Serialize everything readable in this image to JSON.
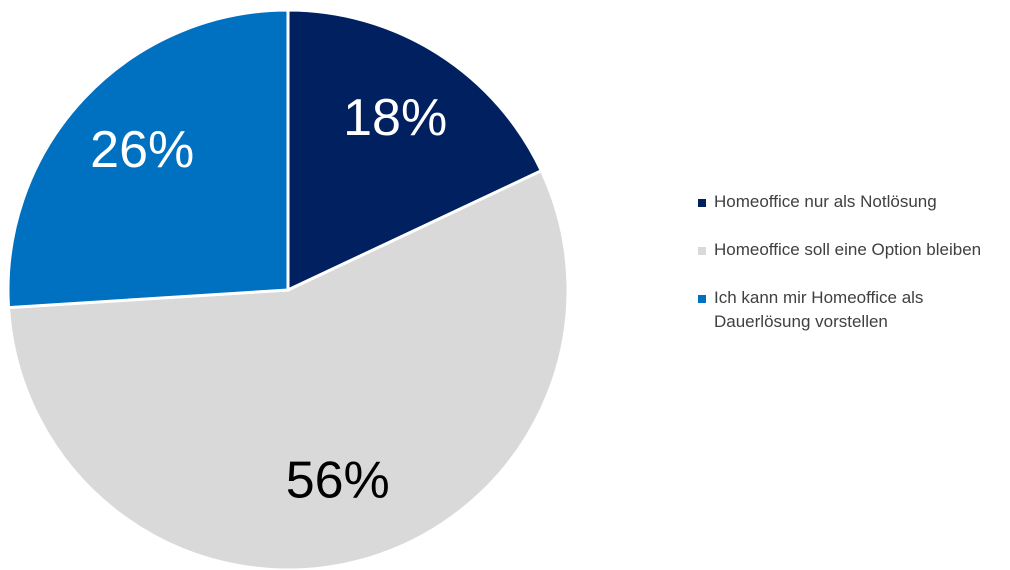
{
  "chart_data": {
    "type": "pie",
    "categories": [
      "Homeoffice nur als Notlösung",
      "Homeoffice soll eine Option bleiben",
      "Ich kann mir Homeoffice als Dauerlösung vorstellen"
    ],
    "values": [
      18,
      56,
      26
    ],
    "value_labels": [
      "18%",
      "56%",
      "26%"
    ],
    "colors": [
      "#002060",
      "#d9d9d9",
      "#0070c0"
    ],
    "label_colors": [
      "#ffffff",
      "#000000",
      "#ffffff"
    ],
    "legend": "right"
  }
}
